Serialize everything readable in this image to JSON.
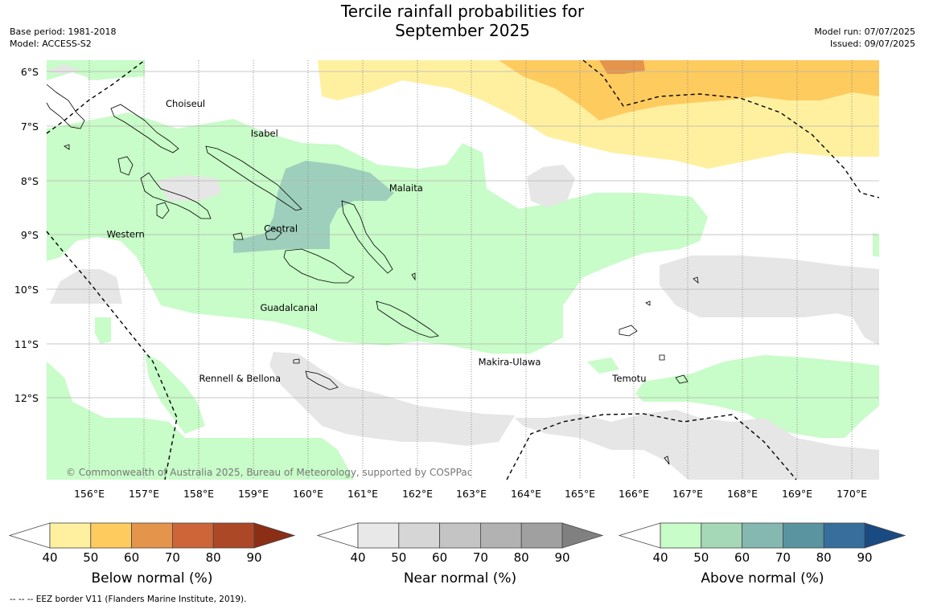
{
  "title_lines": [
    "Tercile rainfall probabilities for",
    "September 2025"
  ],
  "meta_left": [
    "Base period: 1981-2018",
    "Model: ACCESS-S2"
  ],
  "meta_right": [
    "Model run: 07/07/2025",
    "Issued: 09/07/2025"
  ],
  "copyright": "© Commonwealth of Australia 2025, Bureau of Meteorology, supported by COSPPac",
  "lat_labels": [
    "6°S",
    "7°S",
    "8°S",
    "9°S",
    "10°S",
    "11°S",
    "12°S"
  ],
  "lon_labels": [
    "156°E",
    "157°E",
    "158°E",
    "159°E",
    "160°E",
    "161°E",
    "162°E",
    "163°E",
    "164°E",
    "165°E",
    "166°E",
    "167°E",
    "168°E",
    "169°E",
    "170°E"
  ],
  "places": [
    {
      "name": "Choiseul",
      "lon": 157.75,
      "lat": 6.65
    },
    {
      "name": "Isabel",
      "lon": 159.2,
      "lat": 7.2
    },
    {
      "name": "Malaita",
      "lon": 161.8,
      "lat": 8.2
    },
    {
      "name": "Central",
      "lon": 159.5,
      "lat": 8.95
    },
    {
      "name": "Western",
      "lon": 156.65,
      "lat": 9.05
    },
    {
      "name": "Guadalcanal",
      "lon": 159.65,
      "lat": 10.4
    },
    {
      "name": "Makira-Ulawa",
      "lon": 163.7,
      "lat": 11.4
    },
    {
      "name": "Rennell & Bellona",
      "lon": 158.75,
      "lat": 11.7
    },
    {
      "name": "Temotu",
      "lon": 165.9,
      "lat": 11.7
    }
  ],
  "colorbars": [
    {
      "title": "Below normal (%)",
      "ticks": [
        "40",
        "50",
        "60",
        "70",
        "80",
        "90"
      ],
      "colors": [
        "#fff0a0",
        "#fecb5f",
        "#e4954b",
        "#cd6538",
        "#ad4826"
      ],
      "extend_color": "#8b2e16"
    },
    {
      "title": "Near normal (%)",
      "ticks": [
        "40",
        "50",
        "60",
        "70",
        "80",
        "90"
      ],
      "colors": [
        "#e8e8e8",
        "#d6d6d6",
        "#c4c4c4",
        "#b2b2b2",
        "#a0a0a0"
      ],
      "extend_color": "#808080"
    },
    {
      "title": "Above normal (%)",
      "ticks": [
        "40",
        "50",
        "60",
        "70",
        "80",
        "90"
      ],
      "colors": [
        "#c8fcc8",
        "#a5d8b6",
        "#84b8b0",
        "#5a94a0",
        "#366e9c"
      ],
      "extend_color": "#1a4a82"
    }
  ],
  "footer": "--  --  -- EEZ border V11 (Flanders Marine Institute, 2019).",
  "palette": {
    "below_50": "#fff0a0",
    "below_60": "#fecb5f",
    "below_70": "#e4954b",
    "near_40": "#e6e6e6",
    "above_40": "#c8fcc8",
    "above_60": "#9ecfbc",
    "grid": "#bbbbbb",
    "coast": "#000000"
  }
}
